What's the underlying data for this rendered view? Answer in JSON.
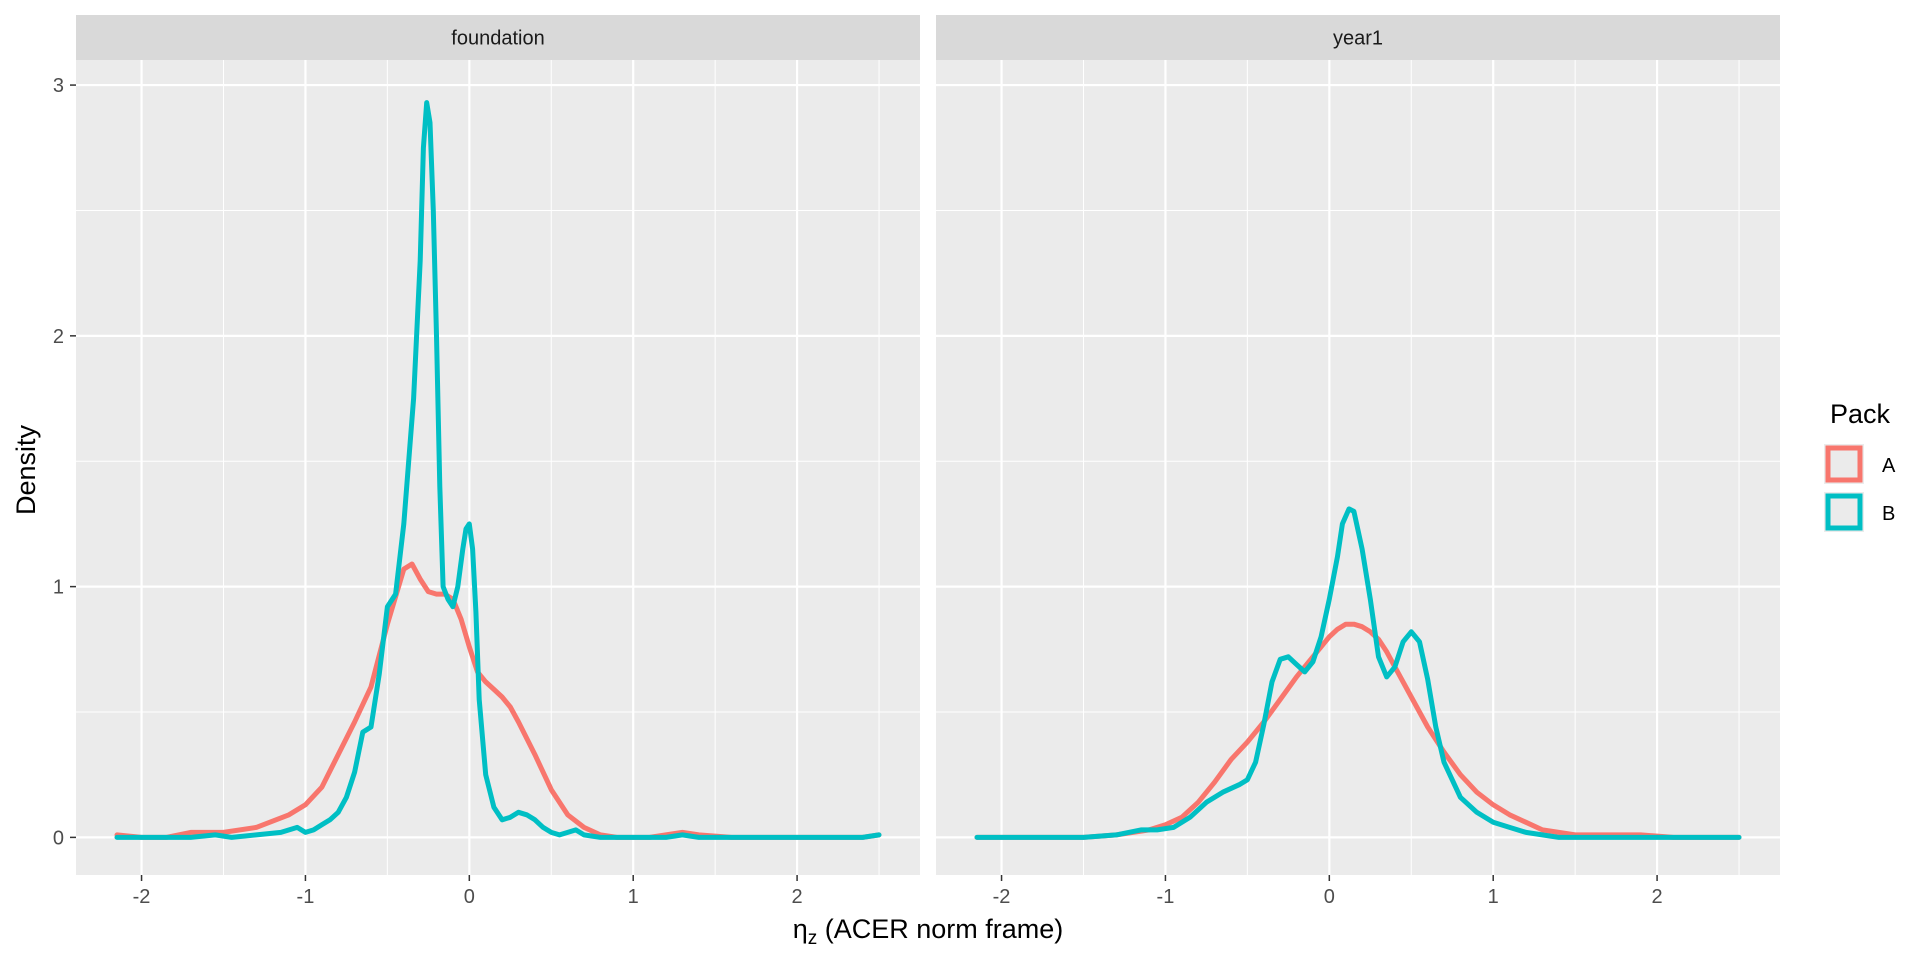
{
  "chart_data": {
    "type": "line",
    "ylabel": "Density",
    "xlabel": {
      "symbol": "η",
      "subscript": "z",
      "rest": " (ACER norm frame)"
    },
    "xlim": [
      -2.4,
      2.75
    ],
    "ylim": [
      -0.15,
      3.1
    ],
    "x_ticks": [
      -2,
      -1,
      0,
      1,
      2
    ],
    "x_tick_labels": [
      "-2",
      "-1",
      "0",
      "1",
      "2"
    ],
    "y_ticks": [
      0,
      1,
      2,
      3
    ],
    "y_tick_labels": [
      "0",
      "1",
      "2",
      "3"
    ],
    "grid": true,
    "legend": {
      "title": "Pack",
      "position": "right",
      "entries": [
        {
          "label": "A",
          "color": "#F8766D"
        },
        {
          "label": "B",
          "color": "#00BFC4"
        }
      ]
    },
    "panels": [
      {
        "strip": "foundation",
        "series": [
          {
            "name": "A",
            "color": "#F8766D",
            "x": [
              -2.15,
              -2.0,
              -1.85,
              -1.7,
              -1.5,
              -1.3,
              -1.1,
              -1.0,
              -0.9,
              -0.8,
              -0.7,
              -0.6,
              -0.5,
              -0.4,
              -0.35,
              -0.3,
              -0.25,
              -0.2,
              -0.15,
              -0.1,
              -0.05,
              0.0,
              0.05,
              0.1,
              0.15,
              0.2,
              0.25,
              0.3,
              0.4,
              0.5,
              0.6,
              0.7,
              0.8,
              0.9,
              1.0,
              1.1,
              1.2,
              1.3,
              1.4,
              1.6,
              1.8,
              2.0,
              2.2,
              2.4,
              2.5
            ],
            "y": [
              0.01,
              0.0,
              0.0,
              0.02,
              0.02,
              0.04,
              0.09,
              0.13,
              0.2,
              0.33,
              0.46,
              0.6,
              0.85,
              1.07,
              1.09,
              1.03,
              0.98,
              0.97,
              0.97,
              0.95,
              0.87,
              0.76,
              0.66,
              0.62,
              0.59,
              0.56,
              0.52,
              0.46,
              0.33,
              0.19,
              0.09,
              0.04,
              0.01,
              0.0,
              0.0,
              0.0,
              0.01,
              0.02,
              0.01,
              0.0,
              0.0,
              0.0,
              0.0,
              0.0,
              0.01
            ]
          },
          {
            "name": "B",
            "color": "#00BFC4",
            "x": [
              -2.15,
              -2.05,
              -1.9,
              -1.7,
              -1.55,
              -1.45,
              -1.3,
              -1.15,
              -1.05,
              -1.0,
              -0.95,
              -0.9,
              -0.85,
              -0.8,
              -0.75,
              -0.7,
              -0.65,
              -0.6,
              -0.55,
              -0.5,
              -0.45,
              -0.4,
              -0.37,
              -0.34,
              -0.3,
              -0.28,
              -0.26,
              -0.24,
              -0.22,
              -0.2,
              -0.18,
              -0.16,
              -0.13,
              -0.1,
              -0.07,
              -0.04,
              -0.02,
              0.0,
              0.02,
              0.04,
              0.06,
              0.1,
              0.15,
              0.2,
              0.25,
              0.3,
              0.35,
              0.4,
              0.45,
              0.5,
              0.55,
              0.6,
              0.65,
              0.7,
              0.8,
              0.9,
              1.0,
              1.1,
              1.2,
              1.3,
              1.4,
              1.6,
              1.8,
              2.0,
              2.2,
              2.4,
              2.5
            ],
            "y": [
              0.0,
              0.0,
              0.0,
              0.0,
              0.01,
              0.0,
              0.01,
              0.02,
              0.04,
              0.02,
              0.03,
              0.05,
              0.07,
              0.1,
              0.16,
              0.26,
              0.42,
              0.44,
              0.65,
              0.92,
              0.97,
              1.25,
              1.5,
              1.75,
              2.3,
              2.75,
              2.93,
              2.85,
              2.5,
              2.0,
              1.4,
              1.0,
              0.95,
              0.92,
              1.0,
              1.15,
              1.23,
              1.25,
              1.15,
              0.9,
              0.55,
              0.25,
              0.12,
              0.07,
              0.08,
              0.1,
              0.09,
              0.07,
              0.04,
              0.02,
              0.01,
              0.02,
              0.03,
              0.01,
              0.0,
              0.0,
              0.0,
              0.0,
              0.0,
              0.01,
              0.0,
              0.0,
              0.0,
              0.0,
              0.0,
              0.0,
              0.01
            ]
          }
        ]
      },
      {
        "strip": "year1",
        "series": [
          {
            "name": "A",
            "color": "#F8766D",
            "x": [
              -2.15,
              -1.8,
              -1.5,
              -1.3,
              -1.1,
              -1.0,
              -0.9,
              -0.8,
              -0.7,
              -0.6,
              -0.5,
              -0.4,
              -0.3,
              -0.2,
              -0.1,
              0.0,
              0.05,
              0.1,
              0.15,
              0.2,
              0.25,
              0.3,
              0.35,
              0.4,
              0.5,
              0.6,
              0.7,
              0.8,
              0.9,
              1.0,
              1.1,
              1.2,
              1.3,
              1.4,
              1.5,
              1.7,
              1.9,
              2.1,
              2.3,
              2.5
            ],
            "y": [
              0.0,
              0.0,
              0.0,
              0.01,
              0.03,
              0.05,
              0.08,
              0.14,
              0.22,
              0.31,
              0.38,
              0.46,
              0.55,
              0.64,
              0.72,
              0.8,
              0.83,
              0.85,
              0.85,
              0.84,
              0.82,
              0.79,
              0.74,
              0.68,
              0.56,
              0.44,
              0.34,
              0.25,
              0.18,
              0.13,
              0.09,
              0.06,
              0.03,
              0.02,
              0.01,
              0.01,
              0.01,
              0.0,
              0.0,
              0.0
            ]
          },
          {
            "name": "B",
            "color": "#00BFC4",
            "x": [
              -2.15,
              -1.8,
              -1.5,
              -1.3,
              -1.15,
              -1.05,
              -0.95,
              -0.85,
              -0.75,
              -0.65,
              -0.55,
              -0.5,
              -0.45,
              -0.4,
              -0.35,
              -0.3,
              -0.25,
              -0.2,
              -0.15,
              -0.1,
              -0.05,
              0.0,
              0.05,
              0.08,
              0.12,
              0.15,
              0.2,
              0.25,
              0.3,
              0.35,
              0.4,
              0.45,
              0.5,
              0.55,
              0.6,
              0.65,
              0.7,
              0.8,
              0.9,
              1.0,
              1.1,
              1.2,
              1.4,
              1.6,
              1.8,
              2.0,
              2.2,
              2.5
            ],
            "y": [
              0.0,
              0.0,
              0.0,
              0.01,
              0.03,
              0.03,
              0.04,
              0.08,
              0.14,
              0.18,
              0.21,
              0.23,
              0.3,
              0.45,
              0.62,
              0.71,
              0.72,
              0.69,
              0.66,
              0.7,
              0.8,
              0.95,
              1.12,
              1.25,
              1.31,
              1.3,
              1.15,
              0.95,
              0.72,
              0.64,
              0.68,
              0.78,
              0.82,
              0.78,
              0.63,
              0.44,
              0.3,
              0.16,
              0.1,
              0.06,
              0.04,
              0.02,
              0.0,
              0.0,
              0.0,
              0.0,
              0.0,
              0.0
            ]
          }
        ]
      }
    ]
  }
}
